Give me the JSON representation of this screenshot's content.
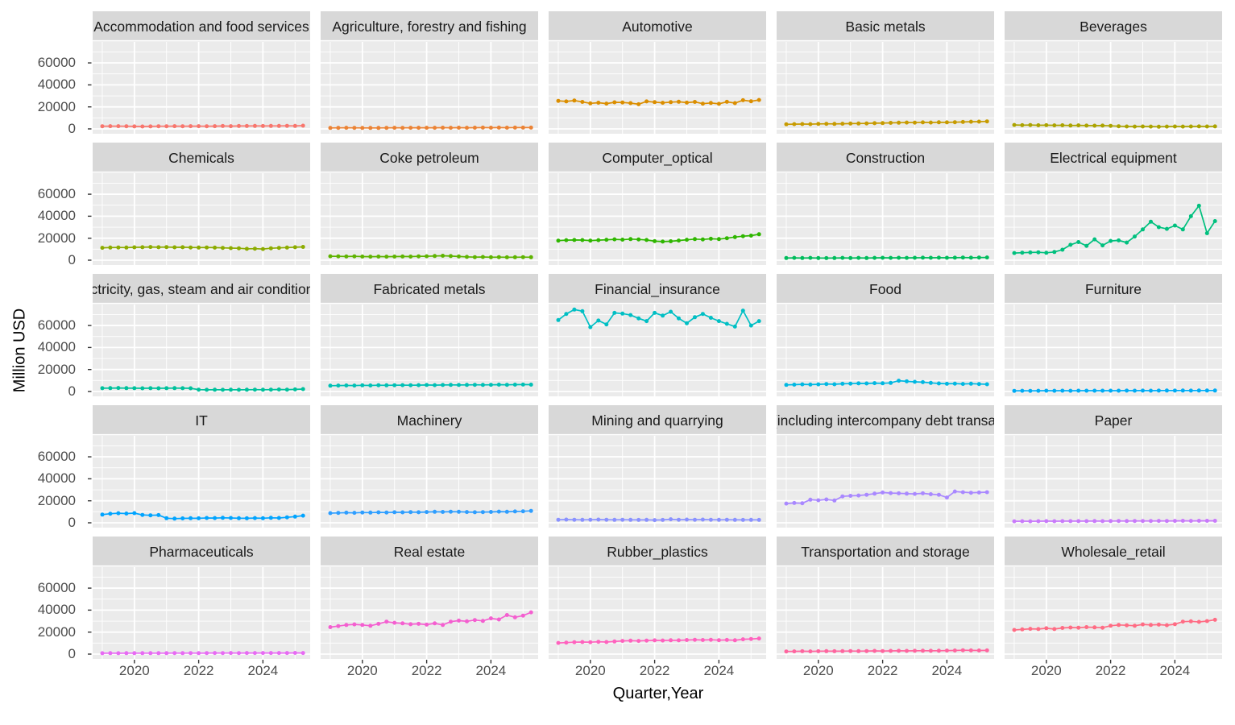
{
  "chart_data": {
    "type": "line",
    "title": "",
    "xlabel": "Quarter,Year",
    "ylabel": "Million USD",
    "legend": "none (one colored series per facet, ggplot hue palette)",
    "grid": "on",
    "panel_bg": "#ebebeb",
    "strip_bg": "#d8d8d8",
    "grid_color": "#ffffff",
    "tick_color": "#333333",
    "x_start": 2019.0,
    "x_step": 0.25,
    "xlim": [
      2018.7,
      2025.47
    ],
    "ylim": [
      -4400,
      79100
    ],
    "x_major": [
      2020,
      2022,
      2024
    ],
    "x_minor": [
      2019,
      2021,
      2023,
      2025
    ],
    "y_major": [
      0,
      20000,
      40000,
      60000,
      80000
    ],
    "y_minor": [
      10000,
      30000,
      50000,
      70000
    ],
    "x_tick_labels": [
      {
        "label": "2020",
        "value": 2020
      },
      {
        "label": "2022",
        "value": 2022
      },
      {
        "label": "2024",
        "value": 2024
      }
    ],
    "y_tick_labels": [
      {
        "label": "60000",
        "value": 60000
      },
      {
        "label": "40000",
        "value": 40000
      },
      {
        "label": "20000",
        "value": 20000
      },
      {
        "label": "0",
        "value": 0
      }
    ],
    "facets": [
      {
        "title": "Accommodation and food services",
        "color": "#F8766D",
        "values": [
          2400,
          2500,
          2500,
          2400,
          2300,
          2200,
          2300,
          2400,
          2400,
          2500,
          2400,
          2500,
          2500,
          2400,
          2500,
          2600,
          2500,
          2600,
          2600,
          2700,
          2600,
          2700,
          2700,
          2800,
          2700,
          2900
        ]
      },
      {
        "title": "Agriculture, forestry and fishing",
        "color": "#EB8335",
        "values": [
          900,
          950,
          1000,
          950,
          900,
          850,
          900,
          950,
          1000,
          950,
          1000,
          1050,
          1000,
          1050,
          1100,
          1050,
          1100,
          1050,
          1100,
          1150,
          1100,
          1150,
          1100,
          1150,
          1200,
          1150
        ]
      },
      {
        "title": "Automotive",
        "color": "#DB8E00",
        "values": [
          25500,
          25000,
          25800,
          24500,
          23200,
          23800,
          23000,
          24200,
          24000,
          23400,
          22400,
          25000,
          24300,
          23700,
          24300,
          24700,
          23900,
          24500,
          22900,
          23600,
          22800,
          24600,
          23400,
          26100,
          25100,
          26300
        ]
      },
      {
        "title": "Basic metals",
        "color": "#C79B00",
        "values": [
          4200,
          4300,
          4400,
          4300,
          4500,
          4600,
          4500,
          4700,
          4800,
          4900,
          5000,
          5200,
          5300,
          5500,
          5600,
          5800,
          5700,
          5900,
          5800,
          6000,
          5900,
          6100,
          6300,
          6500,
          6600,
          6800
        ]
      },
      {
        "title": "Beverages",
        "color": "#ABA300",
        "values": [
          3600,
          3400,
          3500,
          3300,
          3400,
          3200,
          3300,
          3100,
          3200,
          3000,
          2900,
          3000,
          2800,
          2400,
          2200,
          2100,
          2200,
          2100,
          2000,
          2100,
          2200,
          2100,
          2200,
          2300,
          2200,
          2300
        ]
      },
      {
        "title": "Chemicals",
        "color": "#8CAB00",
        "values": [
          11300,
          11500,
          11600,
          11500,
          11700,
          11800,
          12000,
          11800,
          11900,
          11700,
          11800,
          11600,
          11500,
          11600,
          11400,
          11200,
          11000,
          10800,
          10300,
          10500,
          10200,
          10800,
          11200,
          11500,
          11800,
          12100
        ]
      },
      {
        "title": "Coke petroleum",
        "color": "#5EB300",
        "values": [
          3600,
          3500,
          3400,
          3500,
          3300,
          3200,
          3300,
          3200,
          3300,
          3400,
          3300,
          3500,
          3600,
          3800,
          4000,
          3700,
          3400,
          3000,
          2800,
          2900,
          2700,
          2800,
          2600,
          2700,
          2800,
          2700
        ]
      },
      {
        "title": "Computer_optical",
        "color": "#2FB600",
        "values": [
          17800,
          18200,
          18400,
          18300,
          17800,
          18200,
          18600,
          19000,
          18700,
          19200,
          18900,
          18400,
          17300,
          16900,
          17200,
          17900,
          18600,
          19200,
          18900,
          19500,
          19200,
          20000,
          21000,
          21800,
          22300,
          23600
        ]
      },
      {
        "title": "Construction",
        "color": "#00BC5C",
        "values": [
          2000,
          2100,
          2000,
          2100,
          2000,
          1900,
          2000,
          2100,
          2000,
          2100,
          2000,
          2100,
          2200,
          2100,
          2200,
          2100,
          2200,
          2300,
          2200,
          2300,
          2200,
          2300,
          2400,
          2300,
          2400,
          2500
        ]
      },
      {
        "title": "Electrical equipment",
        "color": "#00C07E",
        "values": [
          6500,
          6800,
          7000,
          7200,
          6700,
          7500,
          9500,
          14000,
          16500,
          13000,
          19000,
          13500,
          17500,
          18000,
          16000,
          21500,
          28000,
          35000,
          30000,
          28500,
          31500,
          28000,
          40000,
          49500,
          24500,
          35500
        ]
      },
      {
        "title": "Electricity, gas, steam and air conditioning",
        "color": "#00C19C",
        "values": [
          3000,
          3100,
          3200,
          3100,
          3000,
          2900,
          3000,
          2900,
          3000,
          3100,
          3000,
          2900,
          1700,
          1500,
          1600,
          1500,
          1600,
          1500,
          1600,
          1700,
          1600,
          1700,
          1800,
          1700,
          1900,
          2200
        ]
      },
      {
        "title": "Fabricated metals",
        "color": "#00C0B5",
        "values": [
          5300,
          5400,
          5500,
          5400,
          5600,
          5500,
          5700,
          5600,
          5700,
          5800,
          5700,
          5800,
          5900,
          5800,
          5900,
          6000,
          5900,
          6000,
          6100,
          6000,
          6100,
          6200,
          6100,
          6200,
          6300,
          6200
        ]
      },
      {
        "title": "Financial_insurance",
        "color": "#00BFC4",
        "values": [
          65000,
          70500,
          74500,
          73000,
          58500,
          64500,
          61000,
          71500,
          70800,
          69500,
          66500,
          64000,
          71500,
          69000,
          72500,
          66500,
          62000,
          67500,
          70500,
          67000,
          64000,
          61500,
          59000,
          73500,
          60000,
          64000
        ]
      },
      {
        "title": "Food",
        "color": "#00B8E2",
        "values": [
          6000,
          6200,
          6500,
          6300,
          6500,
          6800,
          6600,
          7000,
          7200,
          7400,
          7300,
          7600,
          7500,
          7800,
          9800,
          9200,
          8800,
          8500,
          7800,
          7300,
          7000,
          7200,
          6900,
          7100,
          6800,
          6600
        ]
      },
      {
        "title": "Furniture",
        "color": "#00ACF6",
        "values": [
          600,
          650,
          600,
          650,
          700,
          650,
          700,
          650,
          700,
          750,
          700,
          750,
          700,
          750,
          800,
          750,
          800,
          750,
          800,
          850,
          800,
          850,
          800,
          850,
          900,
          850
        ]
      },
      {
        "title": "IT",
        "color": "#00A4FF",
        "values": [
          7500,
          8300,
          8700,
          8400,
          8800,
          7200,
          6800,
          7000,
          4200,
          3800,
          4000,
          4200,
          4100,
          4400,
          4300,
          4500,
          4400,
          4200,
          4100,
          4300,
          4200,
          4500,
          4400,
          5000,
          5600,
          6500
        ]
      },
      {
        "title": "Machinery",
        "color": "#2E9EFF",
        "values": [
          8800,
          9000,
          9200,
          9100,
          9400,
          9300,
          9500,
          9400,
          9600,
          9500,
          9700,
          9600,
          9800,
          10000,
          9900,
          10100,
          10000,
          9800,
          9600,
          9700,
          9900,
          10200,
          10000,
          10300,
          10500,
          10800
        ]
      },
      {
        "title": "Mining and quarrying",
        "color": "#8A92FF",
        "values": [
          2800,
          2900,
          2800,
          2700,
          2800,
          2900,
          2800,
          2700,
          2800,
          2700,
          2600,
          2700,
          2500,
          2600,
          3200,
          2800,
          2900,
          2800,
          2900,
          2800,
          2700,
          2800,
          2700,
          2600,
          2700,
          2600
        ]
      },
      {
        "title": "Other (including intercompany debt transactions)",
        "color": "#A988FF",
        "values": [
          17500,
          18000,
          17800,
          21000,
          20500,
          21200,
          20300,
          24000,
          24500,
          24800,
          25500,
          26500,
          27500,
          27000,
          26800,
          26500,
          26300,
          26800,
          26000,
          25500,
          23000,
          28500,
          27800,
          27300,
          27500,
          27800
        ]
      },
      {
        "title": "Paper",
        "color": "#C97AFB",
        "values": [
          1400,
          1450,
          1400,
          1450,
          1500,
          1450,
          1500,
          1550,
          1500,
          1550,
          1600,
          1550,
          1600,
          1650,
          1600,
          1700,
          1650,
          1700,
          1750,
          1700,
          1750,
          1800,
          1750,
          1800,
          1850,
          1800
        ]
      },
      {
        "title": "Pharmaceuticals",
        "color": "#E76BF3",
        "values": [
          800,
          850,
          800,
          850,
          900,
          850,
          900,
          850,
          900,
          950,
          900,
          950,
          900,
          950,
          1000,
          950,
          1000,
          950,
          1000,
          1050,
          1000,
          1050,
          1000,
          1050,
          1100,
          1050
        ]
      },
      {
        "title": "Real estate",
        "color": "#F45FD0",
        "values": [
          24500,
          25500,
          26500,
          27000,
          26500,
          25800,
          27500,
          29500,
          28500,
          28000,
          27200,
          27500,
          26800,
          28000,
          26500,
          29500,
          30500,
          29800,
          31000,
          30200,
          32500,
          31500,
          35500,
          33500,
          35000,
          38000
        ]
      },
      {
        "title": "Rubber_plastics",
        "color": "#FF62BE",
        "values": [
          10200,
          10500,
          10800,
          11000,
          10800,
          11200,
          11000,
          11500,
          12000,
          12200,
          12000,
          12300,
          12500,
          12400,
          12600,
          12500,
          12800,
          13000,
          12800,
          13000,
          12700,
          12900,
          12600,
          13500,
          13800,
          14200
        ]
      },
      {
        "title": "Transportation and storage",
        "color": "#FF659F",
        "values": [
          2400,
          2500,
          2600,
          2500,
          2600,
          2700,
          2600,
          2700,
          2800,
          2700,
          2800,
          2900,
          2800,
          2900,
          3000,
          2900,
          3000,
          3100,
          3000,
          3100,
          3200,
          3300,
          3500,
          3400,
          3300,
          3400
        ]
      },
      {
        "title": "Wholesale_retail",
        "color": "#FF6C84",
        "values": [
          22000,
          22500,
          23000,
          22800,
          23500,
          22800,
          23800,
          24200,
          24000,
          24500,
          24300,
          24000,
          25800,
          26500,
          26200,
          25800,
          27000,
          26500,
          26800,
          26300,
          27200,
          29500,
          29800,
          29300,
          30000,
          31200
        ]
      }
    ]
  }
}
